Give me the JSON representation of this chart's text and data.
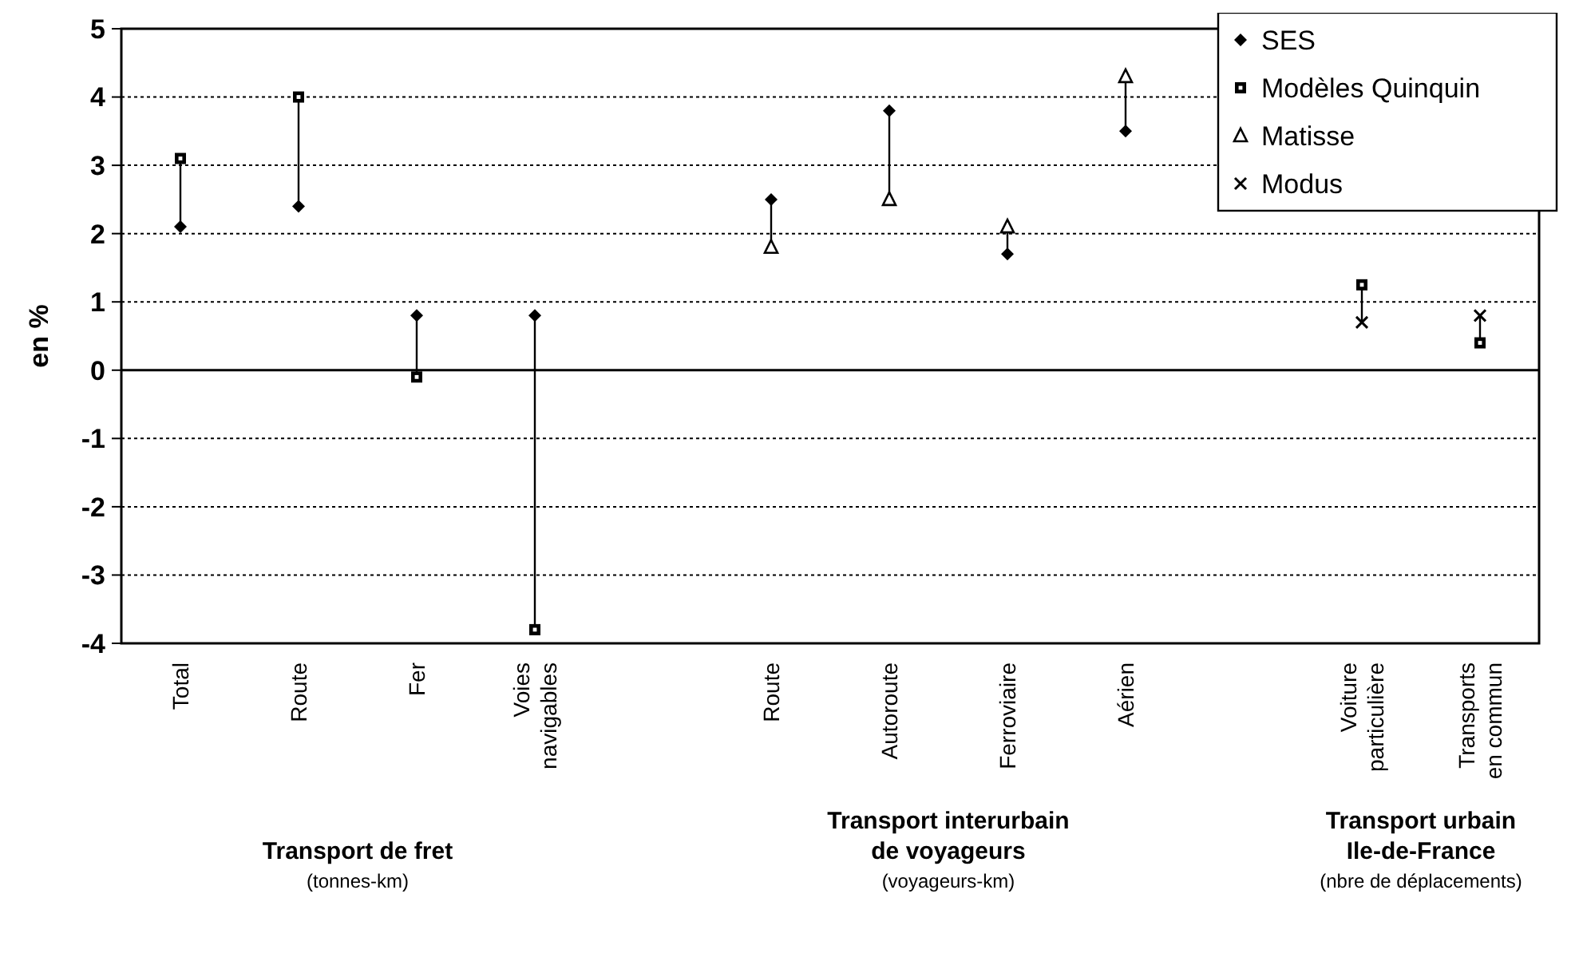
{
  "chart_data": {
    "type": "scatter",
    "ylabel": "en %",
    "categories": [
      "Total",
      "Route",
      "Fer",
      "Voies navigables",
      null,
      "Route",
      "Autoroute",
      "Ferroviaire",
      "Aérien",
      null,
      "Voiture particulière",
      "Transports en commun"
    ],
    "series": [
      {
        "name": "SES",
        "color": "#000000",
        "marker": "diamond",
        "values": [
          2.1,
          2.4,
          0.8,
          0.8,
          null,
          2.5,
          3.8,
          1.7,
          3.5,
          null,
          null,
          null
        ]
      },
      {
        "name": "Modèles Quinquin",
        "color": "#000000",
        "marker": "square",
        "values": [
          3.1,
          4.0,
          -0.1,
          -3.8,
          null,
          null,
          null,
          null,
          null,
          null,
          1.25,
          0.4
        ]
      },
      {
        "name": "Matisse",
        "color": "#000000",
        "marker": "triangle",
        "values": [
          null,
          null,
          null,
          null,
          null,
          1.8,
          2.5,
          2.1,
          4.3,
          null,
          null,
          null
        ]
      },
      {
        "name": "Modus",
        "color": "#000000",
        "marker": "cross",
        "values": [
          null,
          null,
          null,
          null,
          null,
          null,
          null,
          null,
          null,
          null,
          0.7,
          0.8
        ]
      }
    ],
    "ylim": [
      -4,
      5
    ],
    "yticks": [
      -4,
      -3,
      -2,
      -1,
      0,
      1,
      2,
      3,
      4,
      5
    ],
    "grid": "y",
    "legend": "top right",
    "line_style": "solid",
    "annotations": [
      "Transport de fret",
      "(tonnes-km)",
      "Transport interurbain\nde voyageurs",
      "(voyageurs-km)",
      "Transport urbain\nIle-de-France",
      "(nbre de déplacements)"
    ]
  }
}
